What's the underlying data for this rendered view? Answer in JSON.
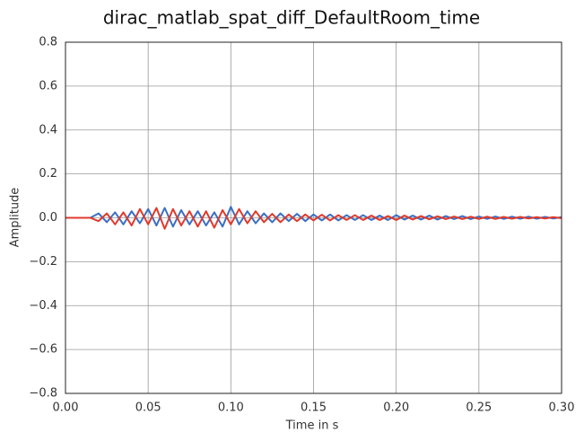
{
  "chart_data": {
    "type": "line",
    "title": "dirac_matlab_spat_diff_DefaultRoom_time",
    "x_label": "Time in s",
    "y_label": "Amplitude",
    "x": [
      0,
      0.005,
      0.01,
      0.015,
      0.02,
      0.025,
      0.03,
      0.035,
      0.04,
      0.045,
      0.05,
      0.055,
      0.06,
      0.065,
      0.07,
      0.075,
      0.08,
      0.085,
      0.09,
      0.095,
      0.1,
      0.105,
      0.11,
      0.115,
      0.12,
      0.125,
      0.13,
      0.135,
      0.14,
      0.145,
      0.15,
      0.155,
      0.16,
      0.165,
      0.17,
      0.175,
      0.18,
      0.185,
      0.19,
      0.195,
      0.2,
      0.205,
      0.21,
      0.215,
      0.22,
      0.225,
      0.23,
      0.235,
      0.24,
      0.245,
      0.25,
      0.255,
      0.26,
      0.265,
      0.27,
      0.275,
      0.28,
      0.285,
      0.29,
      0.295,
      0.3
    ],
    "series": [
      {
        "color": "#3a6fc4",
        "values": [
          0,
          0,
          0,
          0,
          0.02,
          -0.02,
          0.025,
          -0.03,
          0.03,
          -0.025,
          0.04,
          -0.035,
          0.045,
          -0.04,
          0.035,
          -0.03,
          0.03,
          -0.035,
          0.025,
          -0.04,
          0.05,
          -0.03,
          0.03,
          -0.025,
          0.02,
          -0.02,
          0.02,
          -0.015,
          0.018,
          -0.015,
          0.015,
          -0.012,
          0.015,
          -0.012,
          0.012,
          -0.01,
          0.012,
          -0.01,
          0.01,
          -0.01,
          0.012,
          -0.008,
          0.01,
          -0.008,
          0.01,
          -0.008,
          0.008,
          -0.006,
          0.008,
          -0.006,
          0.006,
          -0.005,
          0.006,
          -0.005,
          0.005,
          -0.004,
          0.005,
          -0.004,
          0.004,
          -0.003,
          0.003
        ]
      },
      {
        "color": "#e03a2b",
        "values": [
          0,
          0,
          0,
          0,
          -0.015,
          0.02,
          -0.03,
          0.025,
          -0.035,
          0.04,
          -0.03,
          0.045,
          -0.05,
          0.04,
          -0.035,
          0.03,
          -0.04,
          0.03,
          -0.045,
          0.035,
          -0.03,
          0.04,
          -0.025,
          0.03,
          -0.02,
          0.018,
          -0.02,
          0.015,
          -0.015,
          0.015,
          -0.012,
          0.014,
          -0.012,
          0.012,
          -0.01,
          0.012,
          -0.01,
          0.01,
          -0.01,
          0.008,
          -0.01,
          0.01,
          -0.008,
          0.008,
          -0.007,
          0.007,
          -0.006,
          0.006,
          -0.006,
          0.005,
          -0.005,
          0.005,
          -0.005,
          0.004,
          -0.004,
          0.004,
          -0.003,
          0.003,
          -0.003,
          0.003,
          -0.002
        ]
      }
    ],
    "xlim": [
      0,
      0.3
    ],
    "xticks": [
      {
        "value": 0,
        "label": "0.00"
      },
      0.05,
      {
        "value": 0.1,
        "label": "0.10"
      },
      0.15,
      {
        "value": 0.2,
        "label": "0.20"
      },
      0.25,
      {
        "value": 0.3,
        "label": "0.30"
      }
    ],
    "ylim": [
      -0.8,
      0.8
    ],
    "yticks": [
      {
        "value": -0.8,
        "label": "−0.8"
      },
      {
        "value": -0.6,
        "label": "−0.6"
      },
      {
        "value": -0.4,
        "label": "−0.4"
      },
      {
        "value": -0.2,
        "label": "−0.2"
      },
      {
        "value": 0,
        "label": "0.0"
      },
      0.2,
      0.4,
      0.6,
      0.8
    ],
    "grid": true
  }
}
